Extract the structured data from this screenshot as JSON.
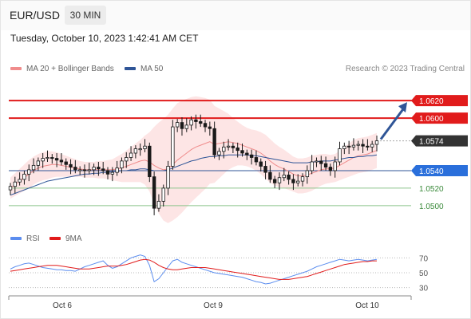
{
  "header": {
    "symbol": "EUR/USD",
    "timeframe": "30 MIN",
    "timestamp": "Tuesday, October 10, 2023 1:42:41 AM CET"
  },
  "legend": {
    "ma20": "MA 20 + Bollinger Bands",
    "ma50": "MA 50",
    "credit": "Research © 2023 Trading Central",
    "rsi": "RSI",
    "rsi_ma": "9MA"
  },
  "colors": {
    "candle": "#1a1a1a",
    "bands": "#fde0e0",
    "ma20": "#f08c8c",
    "ma50": "#2f5597",
    "resistance": "#e11b1b",
    "support_line": "#2f5597",
    "support_label": "#2a6fdb",
    "green_level": "#8cc48c",
    "current": "#333333",
    "arrow": "#2f5597",
    "rsi": "#5b8def",
    "rsi_ma": "#e11b1b"
  },
  "chart_data": [
    {
      "type": "candlestick",
      "x_labels": [
        "Oct 6",
        "Oct 9",
        "Oct 10"
      ],
      "ylim": [
        1.0478,
        1.0642
      ],
      "levels": [
        {
          "label": "1.0620",
          "value": 1.062,
          "kind": "resistance"
        },
        {
          "label": "1.0600",
          "value": 1.06,
          "kind": "resistance"
        },
        {
          "label": "1.0574",
          "value": 1.0574,
          "kind": "current"
        },
        {
          "label": "1.0540",
          "value": 1.054,
          "kind": "support"
        },
        {
          "label": "1.0520",
          "value": 1.052,
          "kind": "minor"
        },
        {
          "label": "1.0500",
          "value": 1.05,
          "kind": "minor"
        }
      ],
      "closes": [
        1.0522,
        1.0527,
        1.053,
        1.0536,
        1.0541,
        1.0546,
        1.0551,
        1.0554,
        1.0555,
        1.0554,
        1.0552,
        1.055,
        1.0547,
        1.0544,
        1.0541,
        1.0541,
        1.054,
        1.0541,
        1.0544,
        1.0542,
        1.054,
        1.0536,
        1.0538,
        1.0543,
        1.0551,
        1.0555,
        1.056,
        1.0565,
        1.0565,
        1.0568,
        1.0533,
        1.0497,
        1.0505,
        1.052,
        1.0545,
        1.059,
        1.0595,
        1.0588,
        1.0592,
        1.0598,
        1.0596,
        1.0594,
        1.059,
        1.0588,
        1.0558,
        1.0562,
        1.0567,
        1.0568,
        1.0566,
        1.0563,
        1.056,
        1.0558,
        1.0555,
        1.055,
        1.0545,
        1.0538,
        1.053,
        1.0526,
        1.0532,
        1.0535,
        1.053,
        1.0526,
        1.0528,
        1.0533,
        1.054,
        1.055,
        1.0551,
        1.0548,
        1.0544,
        1.054,
        1.055,
        1.0565,
        1.0568,
        1.0567,
        1.0569,
        1.057,
        1.0568,
        1.0567,
        1.057,
        1.0574
      ],
      "ma20": [
        1.052,
        1.0524,
        1.0528,
        1.0532,
        1.0536,
        1.054,
        1.0543,
        1.0545,
        1.0546,
        1.0547,
        1.0547,
        1.0546,
        1.0545,
        1.0544,
        1.0543,
        1.0542,
        1.0541,
        1.0541,
        1.0541,
        1.0541,
        1.0541,
        1.0541,
        1.0541,
        1.0542,
        1.0543,
        1.0545,
        1.0547,
        1.0549,
        1.0551,
        1.0552,
        1.055,
        1.0546,
        1.0543,
        1.0541,
        1.0542,
        1.0547,
        1.0552,
        1.0556,
        1.056,
        1.0564,
        1.0567,
        1.0569,
        1.0571,
        1.0573,
        1.057,
        1.0571,
        1.0572,
        1.0573,
        1.0572,
        1.0571,
        1.0569,
        1.0567,
        1.0565,
        1.0563,
        1.056,
        1.0556,
        1.0551,
        1.0547,
        1.0544,
        1.0542,
        1.0539,
        1.0536,
        1.0534,
        1.0534,
        1.0535,
        1.0537,
        1.0539,
        1.0541,
        1.0542,
        1.0542,
        1.0543,
        1.0546,
        1.0549,
        1.0552,
        1.0555,
        1.0557,
        1.0558,
        1.0559,
        1.0561,
        1.0563
      ],
      "ma50": [
        1.0512,
        1.0514,
        1.0516,
        1.0518,
        1.052,
        1.0522,
        1.0524,
        1.0526,
        1.0528,
        1.0529,
        1.053,
        1.0531,
        1.0532,
        1.0533,
        1.0534,
        1.0535,
        1.0536,
        1.0536,
        1.0537,
        1.0537,
        1.0538,
        1.0538,
        1.0539,
        1.0539,
        1.054,
        1.054,
        1.0541,
        1.0541,
        1.0542,
        1.0542,
        1.0541,
        1.054,
        1.054,
        1.054,
        1.0541,
        1.0543,
        1.0545,
        1.0547,
        1.0549,
        1.0551,
        1.0552,
        1.0554,
        1.0555,
        1.0556,
        1.0556,
        1.0557,
        1.0557,
        1.0558,
        1.0558,
        1.0558,
        1.0558,
        1.0558,
        1.0557,
        1.0557,
        1.0556,
        1.0555,
        1.0554,
        1.0553,
        1.0552,
        1.0551,
        1.055,
        1.0549,
        1.0549,
        1.0549,
        1.0549,
        1.055,
        1.055,
        1.0551,
        1.0551,
        1.0551,
        1.0552,
        1.0553,
        1.0554,
        1.0555,
        1.0555,
        1.0556,
        1.0556,
        1.0557,
        1.0557,
        1.0558
      ],
      "bb_width": [
        0.0012,
        0.0013,
        0.0014,
        0.0015,
        0.0016,
        0.0016,
        0.0016,
        0.0016,
        0.0016,
        0.0015,
        0.0014,
        0.0013,
        0.0012,
        0.0011,
        0.001,
        0.0009,
        0.0009,
        0.0009,
        0.0009,
        0.001,
        0.001,
        0.0011,
        0.0012,
        0.0014,
        0.0016,
        0.0018,
        0.002,
        0.0022,
        0.0024,
        0.0028,
        0.0034,
        0.0044,
        0.0052,
        0.0058,
        0.0062,
        0.0064,
        0.0065,
        0.0064,
        0.0062,
        0.006,
        0.0058,
        0.0055,
        0.0052,
        0.0048,
        0.0044,
        0.004,
        0.0036,
        0.0032,
        0.0028,
        0.0025,
        0.0023,
        0.0022,
        0.0022,
        0.0023,
        0.0024,
        0.0025,
        0.0025,
        0.0024,
        0.0023,
        0.0022,
        0.0021,
        0.002,
        0.002,
        0.002,
        0.002,
        0.002,
        0.0019,
        0.0018,
        0.0017,
        0.0016,
        0.0016,
        0.0017,
        0.0018,
        0.0019,
        0.002,
        0.002,
        0.002,
        0.002,
        0.002,
        0.002
      ],
      "projection": {
        "from": 1.0574,
        "to": 1.062
      }
    },
    {
      "type": "line",
      "name": "RSI panel",
      "ylim": [
        20,
        80
      ],
      "y_ticks": [
        "70",
        "50",
        "30"
      ],
      "series": [
        {
          "name": "RSI",
          "values": [
            55,
            58,
            60,
            62,
            63,
            61,
            59,
            57,
            56,
            55,
            54,
            54,
            53,
            53,
            52,
            55,
            58,
            60,
            62,
            64,
            66,
            60,
            56,
            58,
            62,
            66,
            70,
            72,
            74,
            72,
            60,
            38,
            42,
            50,
            58,
            66,
            68,
            64,
            62,
            60,
            58,
            56,
            54,
            52,
            50,
            49,
            48,
            47,
            46,
            45,
            44,
            42,
            40,
            38,
            37,
            35,
            36,
            38,
            40,
            42,
            44,
            46,
            48,
            50,
            52,
            55,
            58,
            60,
            62,
            64,
            66,
            68,
            67,
            66,
            67,
            68,
            67,
            66,
            67,
            68
          ]
        },
        {
          "name": "9MA",
          "values": [
            52,
            53,
            54,
            55,
            56,
            57,
            58,
            59,
            60,
            60,
            60,
            59,
            58,
            57,
            56,
            55,
            55,
            55,
            56,
            57,
            58,
            59,
            59,
            59,
            60,
            61,
            63,
            65,
            67,
            68,
            67,
            64,
            60,
            57,
            55,
            54,
            54,
            55,
            56,
            57,
            57,
            57,
            57,
            56,
            55,
            54,
            53,
            52,
            51,
            50,
            49,
            48,
            47,
            46,
            45,
            44,
            43,
            42,
            41,
            41,
            41,
            42,
            43,
            44,
            45,
            47,
            49,
            51,
            53,
            55,
            57,
            59,
            61,
            62,
            63,
            64,
            65,
            65,
            66,
            66
          ]
        }
      ]
    }
  ]
}
